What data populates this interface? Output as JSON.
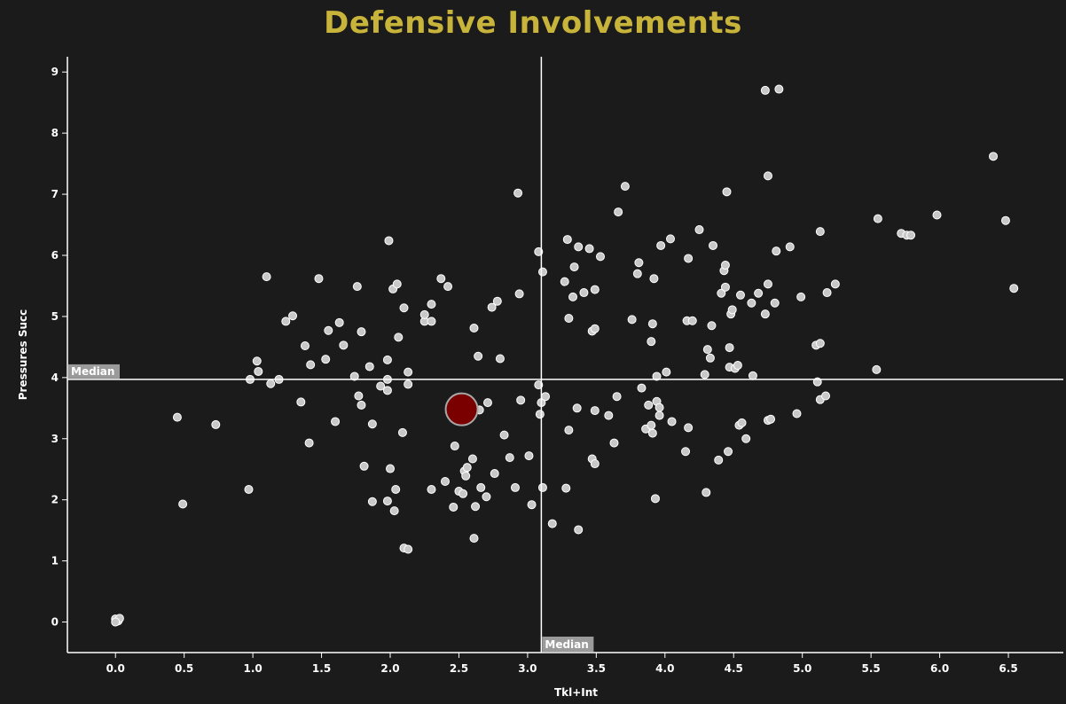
{
  "title": "Defensive Involvements",
  "colors": {
    "background": "#1b1b1b",
    "title": "#c8b43a",
    "axis": "#ffffff",
    "point_fill": "#c8c8c8",
    "point_stroke": "#ffffff",
    "highlight_fill": "#7a0000",
    "highlight_stroke": "#a8a8a8",
    "median_line": "#ffffff",
    "median_label_bg": "#9a9a9a"
  },
  "chart_data": {
    "type": "scatter",
    "title": "Defensive Involvements",
    "xlabel": "Tkl+Int",
    "ylabel": "Pressures Succ",
    "xlim": [
      -0.35,
      6.9
    ],
    "ylim": [
      -0.5,
      9.25
    ],
    "xticks": [
      "0.0",
      "0.5",
      "1.0",
      "1.5",
      "2.0",
      "2.5",
      "3.0",
      "3.5",
      "4.0",
      "4.5",
      "5.0",
      "5.5",
      "6.0",
      "6.5"
    ],
    "yticks": [
      "0",
      "1",
      "2",
      "3",
      "4",
      "5",
      "6",
      "7",
      "8",
      "9"
    ],
    "median_x": 3.1,
    "median_y": 3.97,
    "median_label": "Median",
    "grid": false,
    "highlight": {
      "x": 2.52,
      "y": 3.48
    },
    "points": [
      [
        0.0,
        0.05
      ],
      [
        0.02,
        0.02
      ],
      [
        0.03,
        0.06
      ],
      [
        0.0,
        0.0
      ],
      [
        0.45,
        3.35
      ],
      [
        0.49,
        1.93
      ],
      [
        0.73,
        3.23
      ],
      [
        0.97,
        2.17
      ],
      [
        0.98,
        3.97
      ],
      [
        1.03,
        4.27
      ],
      [
        1.04,
        4.1
      ],
      [
        1.1,
        5.65
      ],
      [
        1.13,
        3.9
      ],
      [
        1.19,
        3.97
      ],
      [
        1.24,
        4.92
      ],
      [
        1.29,
        5.01
      ],
      [
        1.35,
        3.6
      ],
      [
        1.38,
        4.52
      ],
      [
        1.41,
        2.93
      ],
      [
        1.42,
        4.21
      ],
      [
        1.48,
        5.62
      ],
      [
        1.53,
        4.3
      ],
      [
        1.55,
        4.77
      ],
      [
        1.6,
        3.28
      ],
      [
        1.63,
        4.9
      ],
      [
        1.66,
        4.53
      ],
      [
        1.74,
        4.02
      ],
      [
        1.76,
        5.49
      ],
      [
        1.77,
        3.7
      ],
      [
        1.79,
        3.55
      ],
      [
        1.79,
        4.75
      ],
      [
        1.81,
        2.55
      ],
      [
        1.85,
        4.18
      ],
      [
        1.87,
        1.97
      ],
      [
        1.87,
        3.24
      ],
      [
        1.93,
        3.86
      ],
      [
        1.98,
        1.98
      ],
      [
        1.98,
        3.79
      ],
      [
        1.98,
        3.97
      ],
      [
        1.98,
        4.29
      ],
      [
        1.99,
        6.24
      ],
      [
        2.0,
        2.51
      ],
      [
        2.02,
        5.45
      ],
      [
        2.03,
        1.82
      ],
      [
        2.04,
        2.17
      ],
      [
        2.05,
        5.53
      ],
      [
        2.06,
        4.66
      ],
      [
        2.09,
        3.1
      ],
      [
        2.1,
        5.14
      ],
      [
        2.1,
        1.21
      ],
      [
        2.13,
        1.19
      ],
      [
        2.13,
        3.89
      ],
      [
        2.13,
        4.09
      ],
      [
        2.25,
        4.92
      ],
      [
        2.25,
        5.03
      ],
      [
        2.3,
        4.92
      ],
      [
        2.3,
        5.2
      ],
      [
        2.3,
        2.17
      ],
      [
        2.37,
        5.62
      ],
      [
        2.4,
        2.3
      ],
      [
        2.42,
        5.49
      ],
      [
        2.46,
        1.88
      ],
      [
        2.47,
        2.88
      ],
      [
        2.5,
        2.14
      ],
      [
        2.53,
        2.1
      ],
      [
        2.54,
        2.47
      ],
      [
        2.55,
        2.39
      ],
      [
        2.56,
        2.53
      ],
      [
        2.6,
        2.67
      ],
      [
        2.61,
        1.37
      ],
      [
        2.61,
        4.81
      ],
      [
        2.62,
        1.89
      ],
      [
        2.64,
        4.35
      ],
      [
        2.65,
        3.47
      ],
      [
        2.66,
        2.2
      ],
      [
        2.7,
        2.05
      ],
      [
        2.71,
        3.59
      ],
      [
        2.74,
        5.15
      ],
      [
        2.76,
        2.43
      ],
      [
        2.78,
        5.25
      ],
      [
        2.8,
        4.31
      ],
      [
        2.83,
        3.06
      ],
      [
        2.87,
        2.69
      ],
      [
        2.91,
        2.2
      ],
      [
        2.93,
        7.02
      ],
      [
        2.94,
        5.37
      ],
      [
        2.95,
        3.63
      ],
      [
        3.01,
        2.72
      ],
      [
        3.03,
        1.92
      ],
      [
        3.08,
        3.88
      ],
      [
        3.08,
        6.06
      ],
      [
        3.09,
        3.4
      ],
      [
        3.1,
        3.59
      ],
      [
        3.11,
        2.2
      ],
      [
        3.11,
        5.73
      ],
      [
        3.13,
        3.69
      ],
      [
        3.18,
        1.61
      ],
      [
        3.27,
        5.57
      ],
      [
        3.28,
        2.19
      ],
      [
        3.29,
        6.26
      ],
      [
        3.3,
        3.14
      ],
      [
        3.3,
        4.97
      ],
      [
        3.33,
        5.32
      ],
      [
        3.34,
        5.81
      ],
      [
        3.36,
        3.5
      ],
      [
        3.37,
        1.51
      ],
      [
        3.37,
        6.14
      ],
      [
        3.41,
        5.39
      ],
      [
        3.45,
        6.11
      ],
      [
        3.47,
        2.67
      ],
      [
        3.47,
        4.76
      ],
      [
        3.49,
        2.59
      ],
      [
        3.49,
        3.46
      ],
      [
        3.49,
        4.8
      ],
      [
        3.49,
        5.44
      ],
      [
        3.53,
        5.98
      ],
      [
        3.59,
        3.38
      ],
      [
        3.63,
        2.93
      ],
      [
        3.65,
        3.69
      ],
      [
        3.66,
        6.71
      ],
      [
        3.71,
        7.13
      ],
      [
        3.76,
        4.95
      ],
      [
        3.8,
        5.7
      ],
      [
        3.81,
        5.88
      ],
      [
        3.83,
        3.83
      ],
      [
        3.86,
        3.16
      ],
      [
        3.88,
        3.55
      ],
      [
        3.9,
        3.22
      ],
      [
        3.9,
        4.59
      ],
      [
        3.91,
        3.09
      ],
      [
        3.91,
        4.88
      ],
      [
        3.92,
        5.62
      ],
      [
        3.93,
        2.02
      ],
      [
        3.94,
        3.61
      ],
      [
        3.94,
        4.02
      ],
      [
        3.96,
        3.38
      ],
      [
        3.96,
        3.51
      ],
      [
        3.97,
        6.16
      ],
      [
        4.01,
        4.09
      ],
      [
        4.04,
        6.27
      ],
      [
        4.05,
        3.28
      ],
      [
        4.15,
        2.79
      ],
      [
        4.16,
        4.93
      ],
      [
        4.17,
        3.18
      ],
      [
        4.17,
        5.95
      ],
      [
        4.2,
        4.93
      ],
      [
        4.25,
        6.42
      ],
      [
        4.29,
        4.05
      ],
      [
        4.3,
        2.12
      ],
      [
        4.31,
        4.46
      ],
      [
        4.33,
        4.32
      ],
      [
        4.34,
        4.85
      ],
      [
        4.35,
        6.16
      ],
      [
        4.39,
        2.65
      ],
      [
        4.41,
        5.38
      ],
      [
        4.43,
        5.75
      ],
      [
        4.44,
        5.84
      ],
      [
        4.44,
        5.48
      ],
      [
        4.45,
        7.04
      ],
      [
        4.46,
        2.79
      ],
      [
        4.47,
        4.49
      ],
      [
        4.47,
        4.17
      ],
      [
        4.48,
        5.04
      ],
      [
        4.49,
        5.11
      ],
      [
        4.51,
        4.15
      ],
      [
        4.53,
        4.2
      ],
      [
        4.54,
        3.22
      ],
      [
        4.55,
        5.35
      ],
      [
        4.56,
        3.26
      ],
      [
        4.59,
        3.0
      ],
      [
        4.63,
        5.22
      ],
      [
        4.64,
        4.03
      ],
      [
        4.68,
        5.38
      ],
      [
        4.73,
        8.7
      ],
      [
        4.73,
        5.04
      ],
      [
        4.75,
        7.3
      ],
      [
        4.75,
        5.53
      ],
      [
        4.75,
        3.3
      ],
      [
        4.77,
        3.32
      ],
      [
        4.8,
        5.22
      ],
      [
        4.81,
        6.07
      ],
      [
        4.83,
        8.72
      ],
      [
        4.91,
        6.14
      ],
      [
        4.96,
        3.41
      ],
      [
        4.99,
        5.32
      ],
      [
        5.1,
        4.53
      ],
      [
        5.11,
        3.93
      ],
      [
        5.13,
        4.56
      ],
      [
        5.13,
        3.64
      ],
      [
        5.13,
        6.39
      ],
      [
        5.17,
        3.7
      ],
      [
        5.18,
        5.39
      ],
      [
        5.24,
        5.53
      ],
      [
        5.54,
        4.13
      ],
      [
        5.55,
        6.6
      ],
      [
        5.72,
        6.36
      ],
      [
        5.76,
        6.33
      ],
      [
        5.79,
        6.33
      ],
      [
        5.98,
        6.66
      ],
      [
        6.39,
        7.62
      ],
      [
        6.48,
        6.57
      ],
      [
        6.54,
        5.46
      ]
    ]
  }
}
